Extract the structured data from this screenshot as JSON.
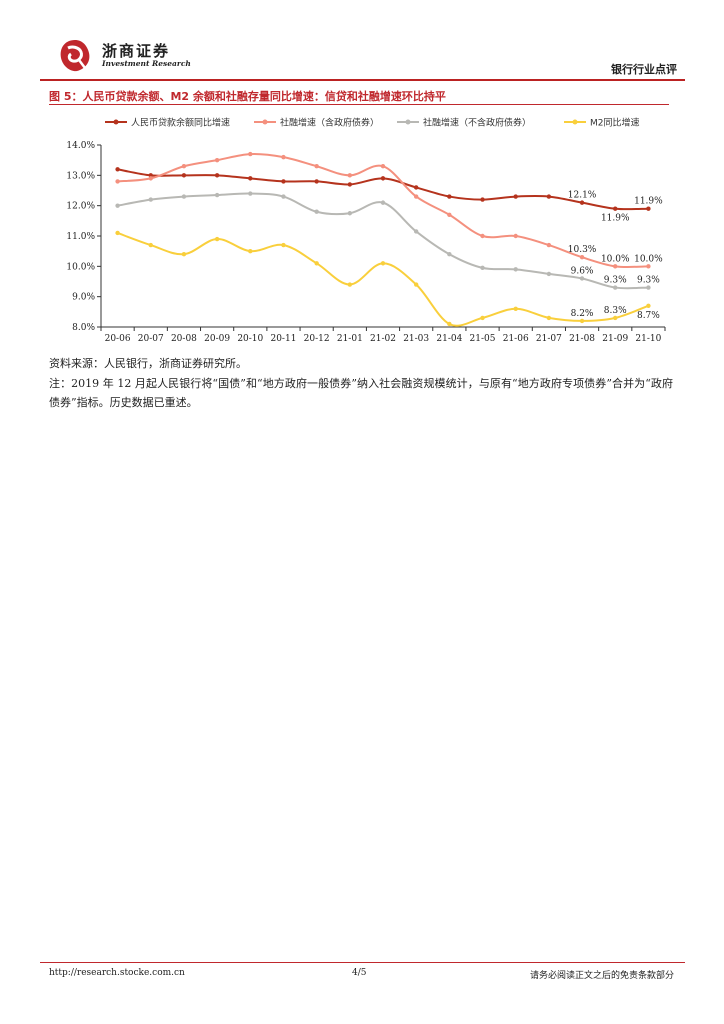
{
  "header": {
    "brand_cn": "浙商证券",
    "brand_en": "Investment Research",
    "report_type": "银行行业点评"
  },
  "figure": {
    "title": "图 5：人民币贷款余额、M2 余额和社融存量同比增速：信贷和社融增速环比持平"
  },
  "source": "资料来源：人民银行，浙商证券研究所。",
  "note": "注：2019 年 12 月起人民银行将“国债”和“地方政府一般债券”纳入社会融资规模统计，与原有“地方政府专项债券”合并为“政府债券”指标。历史数据已重述。",
  "footer": {
    "url": "http://research.stocke.com.cn",
    "page": "4/5",
    "disclaimer": "请务必阅读正文之后的免责条款部分"
  },
  "chart_data": {
    "type": "line",
    "categories": [
      "20-06",
      "20-07",
      "20-08",
      "20-09",
      "20-10",
      "20-11",
      "20-12",
      "21-01",
      "21-02",
      "21-03",
      "21-04",
      "21-05",
      "21-06",
      "21-07",
      "21-08",
      "21-09",
      "21-10"
    ],
    "ylim": [
      8.0,
      14.0
    ],
    "yticks": [
      "8.0%",
      "9.0%",
      "10.0%",
      "11.0%",
      "12.0%",
      "13.0%",
      "14.0%"
    ],
    "series": [
      {
        "name": "人民币贷款余额同比增速",
        "color": "#b5331d",
        "values": [
          13.2,
          13.0,
          13.0,
          13.0,
          12.9,
          12.8,
          12.8,
          12.7,
          12.9,
          12.6,
          12.3,
          12.2,
          12.3,
          12.3,
          12.1,
          11.9,
          11.9
        ]
      },
      {
        "name": "社融增速（含政府债券）",
        "color": "#f4907e",
        "values": [
          12.8,
          12.9,
          13.3,
          13.5,
          13.7,
          13.6,
          13.3,
          13.0,
          13.3,
          12.3,
          11.7,
          11.0,
          11.0,
          10.7,
          10.3,
          10.0,
          10.0
        ]
      },
      {
        "name": "社融增速（不含政府债券）",
        "color": "#b8b8b4",
        "values": [
          12.0,
          12.2,
          12.3,
          12.35,
          12.4,
          12.3,
          11.8,
          11.75,
          12.1,
          11.15,
          10.4,
          9.95,
          9.9,
          9.75,
          9.6,
          9.3,
          9.3
        ]
      },
      {
        "name": "M2同比增速",
        "color": "#f9cf3c",
        "values": [
          11.1,
          10.7,
          10.4,
          10.9,
          10.5,
          10.7,
          10.1,
          9.4,
          10.1,
          9.4,
          8.1,
          8.3,
          8.6,
          8.3,
          8.2,
          8.3,
          8.7
        ]
      }
    ],
    "data_labels": [
      {
        "series": 0,
        "index": 14,
        "text": "12.1%",
        "pos": "above"
      },
      {
        "series": 0,
        "index": 15,
        "text": "11.9%",
        "pos": "below"
      },
      {
        "series": 0,
        "index": 16,
        "text": "11.9%",
        "pos": "above"
      },
      {
        "series": 1,
        "index": 14,
        "text": "10.3%",
        "pos": "above"
      },
      {
        "series": 1,
        "index": 15,
        "text": "10.0%",
        "pos": "above"
      },
      {
        "series": 1,
        "index": 16,
        "text": "10.0%",
        "pos": "above"
      },
      {
        "series": 2,
        "index": 14,
        "text": "9.6%",
        "pos": "above"
      },
      {
        "series": 2,
        "index": 15,
        "text": "9.3%",
        "pos": "above"
      },
      {
        "series": 2,
        "index": 16,
        "text": "9.3%",
        "pos": "above"
      },
      {
        "series": 3,
        "index": 14,
        "text": "8.2%",
        "pos": "above"
      },
      {
        "series": 3,
        "index": 15,
        "text": "8.3%",
        "pos": "above"
      },
      {
        "series": 3,
        "index": 16,
        "text": "8.7%",
        "pos": "below"
      }
    ]
  }
}
